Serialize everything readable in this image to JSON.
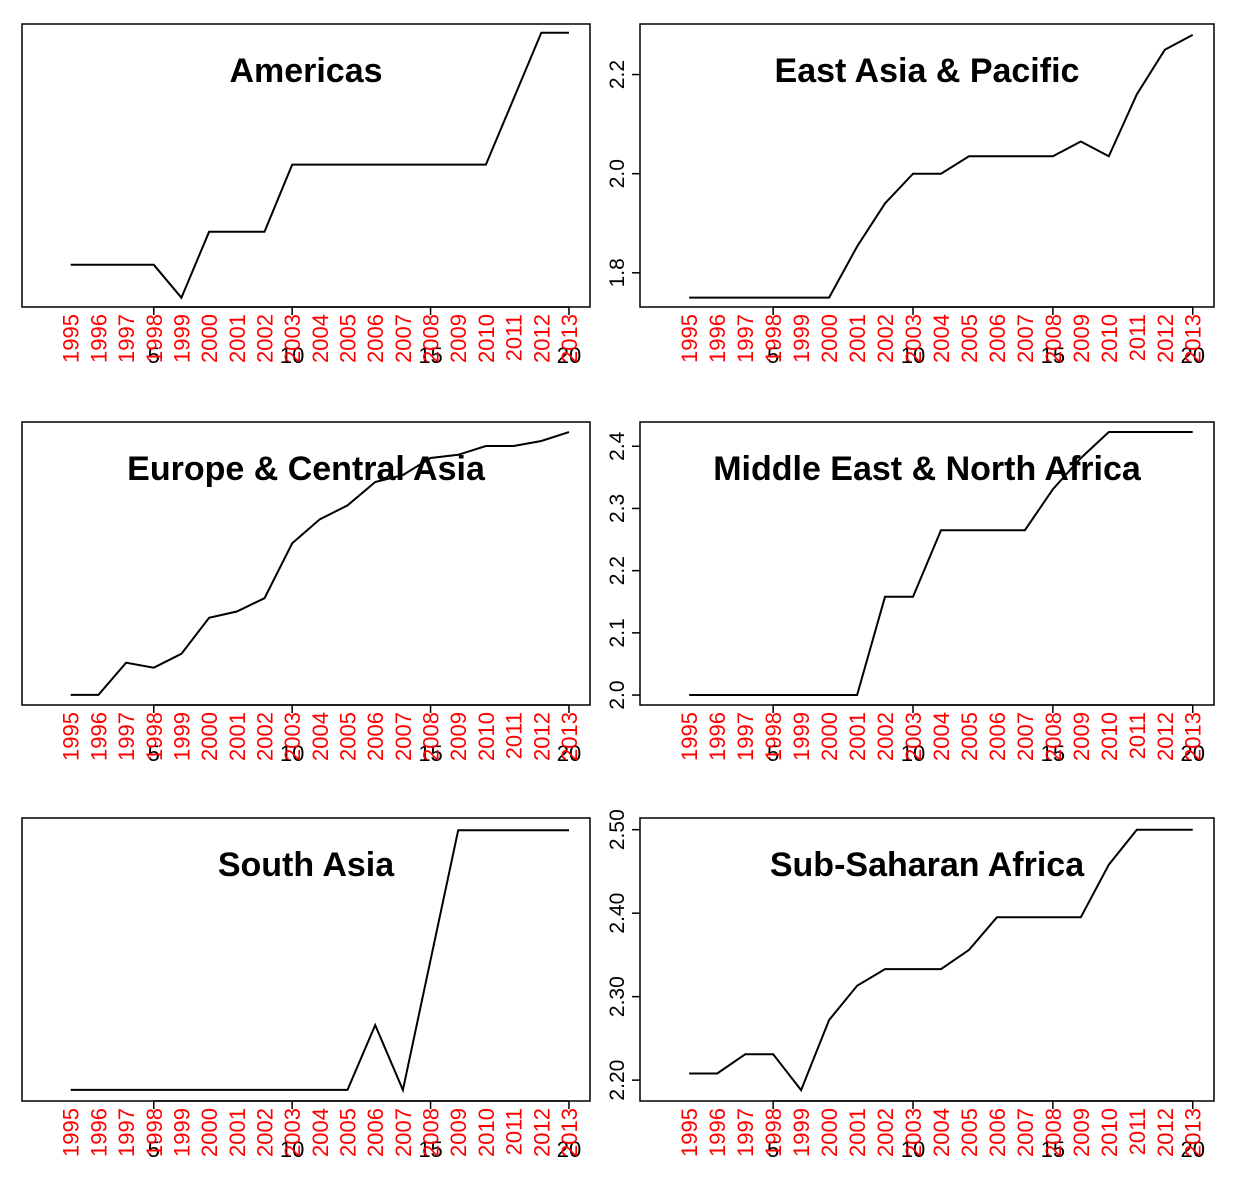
{
  "chart_data": [
    {
      "type": "line",
      "title": "Americas",
      "color": "#000000",
      "label_color": "#ff0000",
      "x": [
        2,
        3,
        4,
        5,
        6,
        7,
        8,
        9,
        10,
        11,
        12,
        13,
        14,
        15,
        16,
        17,
        18,
        19,
        20
      ],
      "categories": [
        "1995",
        "1996",
        "1997",
        "1998",
        "1999",
        "2000",
        "2001",
        "2002",
        "2003",
        "2004",
        "2005",
        "2006",
        "2007",
        "2008",
        "2009",
        "2010",
        "2011",
        "2012",
        "2013"
      ],
      "values": [
        1.843,
        1.843,
        1.843,
        1.843,
        1.786,
        1.9,
        1.9,
        1.9,
        2.016,
        2.016,
        2.016,
        2.016,
        2.016,
        2.016,
        2.016,
        2.016,
        2.13,
        2.244,
        2.244
      ],
      "xlim": [
        0.24,
        20.76
      ],
      "xticks": [
        5,
        10,
        15,
        20
      ],
      "ylim": [
        1.77,
        2.259
      ]
    },
    {
      "type": "line",
      "title": "East Asia & Pacific",
      "color": "#000000",
      "label_color": "#ff0000",
      "x": [
        2,
        3,
        4,
        5,
        6,
        7,
        8,
        9,
        10,
        11,
        12,
        13,
        14,
        15,
        16,
        17,
        18,
        19,
        20
      ],
      "categories": [
        "1995",
        "1996",
        "1997",
        "1998",
        "1999",
        "2000",
        "2001",
        "2002",
        "2003",
        "2004",
        "2005",
        "2006",
        "2007",
        "2008",
        "2009",
        "2010",
        "2011",
        "2012",
        "2013"
      ],
      "values": [
        1.75,
        1.75,
        1.75,
        1.75,
        1.75,
        1.75,
        1.853,
        1.94,
        2.0,
        2.0,
        2.035,
        2.035,
        2.035,
        2.035,
        2.065,
        2.035,
        2.16,
        2.25,
        2.28
      ],
      "xlim": [
        0.24,
        20.76
      ],
      "xticks": [
        5,
        10,
        15,
        20
      ],
      "ylim": [
        1.731,
        2.302
      ],
      "yticks": [
        1.8,
        {
          "value": 2,
          "label": "2.0"
        },
        2.2
      ]
    },
    {
      "type": "line",
      "title": "Europe & Central Asia",
      "color": "#000000",
      "label_color": "#ff0000",
      "x": [
        2,
        3,
        4,
        5,
        6,
        7,
        8,
        9,
        10,
        11,
        12,
        13,
        14,
        15,
        16,
        17,
        18,
        19,
        20
      ],
      "categories": [
        "1995",
        "1996",
        "1997",
        "1998",
        "1999",
        "2000",
        "2001",
        "2002",
        "2003",
        "2004",
        "2005",
        "2006",
        "2007",
        "2008",
        "2009",
        "2010",
        "2011",
        "2012",
        "2013"
      ],
      "values": [
        1.949,
        1.949,
        2.0,
        1.992,
        2.014,
        2.071,
        2.081,
        2.102,
        2.189,
        2.227,
        2.249,
        2.286,
        2.297,
        2.324,
        2.329,
        2.343,
        2.343,
        2.351,
        2.365
      ],
      "xlim": [
        0.24,
        20.76
      ],
      "xticks": [
        5,
        10,
        15,
        20
      ],
      "ylim": [
        1.933,
        2.381
      ]
    },
    {
      "type": "line",
      "title": "Middle East & North Africa",
      "color": "#000000",
      "label_color": "#ff0000",
      "x": [
        2,
        3,
        4,
        5,
        6,
        7,
        8,
        9,
        10,
        11,
        12,
        13,
        14,
        15,
        16,
        17,
        18,
        19,
        20
      ],
      "categories": [
        "1995",
        "1996",
        "1997",
        "1998",
        "1999",
        "2000",
        "2001",
        "2002",
        "2003",
        "2004",
        "2005",
        "2006",
        "2007",
        "2008",
        "2009",
        "2010",
        "2011",
        "2012",
        "2013"
      ],
      "values": [
        2.0,
        2.0,
        2.0,
        2.0,
        2.0,
        2.0,
        2.0,
        2.158,
        2.158,
        2.265,
        2.265,
        2.265,
        2.265,
        2.331,
        2.381,
        2.423,
        2.423,
        2.423,
        2.423
      ],
      "xlim": [
        0.24,
        20.76
      ],
      "xticks": [
        5,
        10,
        15,
        20
      ],
      "ylim": [
        1.984,
        2.439
      ],
      "yticks": [
        {
          "value": 2,
          "label": "2.0"
        },
        2.1,
        2.2,
        2.3,
        2.4
      ]
    },
    {
      "type": "line",
      "title": "South Asia",
      "color": "#000000",
      "label_color": "#ff0000",
      "x": [
        2,
        3,
        4,
        5,
        6,
        7,
        8,
        9,
        10,
        11,
        12,
        13,
        14,
        15,
        16,
        17,
        18,
        19,
        20
      ],
      "categories": [
        "1995",
        "1996",
        "1997",
        "1998",
        "1999",
        "2000",
        "2001",
        "2002",
        "2003",
        "2004",
        "2005",
        "2006",
        "2007",
        "2008",
        "2009",
        "2010",
        "2011",
        "2012",
        "2013"
      ],
      "values": [
        2.129,
        2.129,
        2.129,
        2.129,
        2.129,
        2.129,
        2.129,
        2.129,
        2.129,
        2.129,
        2.129,
        2.246,
        2.129,
        2.364,
        2.598,
        2.598,
        2.598,
        2.598,
        2.598
      ],
      "xlim": [
        0.24,
        20.76
      ],
      "xticks": [
        5,
        10,
        15,
        20
      ],
      "ylim": [
        2.109,
        2.62
      ]
    },
    {
      "type": "line",
      "title": "Sub-Saharan Africa",
      "color": "#000000",
      "label_color": "#ff0000",
      "x": [
        2,
        3,
        4,
        5,
        6,
        7,
        8,
        9,
        10,
        11,
        12,
        13,
        14,
        15,
        16,
        17,
        18,
        19,
        20
      ],
      "categories": [
        "1995",
        "1996",
        "1997",
        "1998",
        "1999",
        "2000",
        "2001",
        "2002",
        "2003",
        "2004",
        "2005",
        "2006",
        "2007",
        "2008",
        "2009",
        "2010",
        "2011",
        "2012",
        "2013"
      ],
      "values": [
        2.208,
        2.208,
        2.231,
        2.231,
        2.188,
        2.272,
        2.313,
        2.333,
        2.333,
        2.333,
        2.356,
        2.395,
        2.395,
        2.395,
        2.395,
        2.458,
        2.5,
        2.5,
        2.5
      ],
      "xlim": [
        0.24,
        20.76
      ],
      "xticks": [
        5,
        10,
        15,
        20
      ],
      "ylim": [
        2.175,
        2.514
      ],
      "yticks": [
        {
          "value": 2.2,
          "label": "2.20"
        },
        {
          "value": 2.3,
          "label": "2.30"
        },
        {
          "value": 2.4,
          "label": "2.40"
        },
        {
          "value": 2.5,
          "label": "2.50"
        }
      ]
    }
  ]
}
